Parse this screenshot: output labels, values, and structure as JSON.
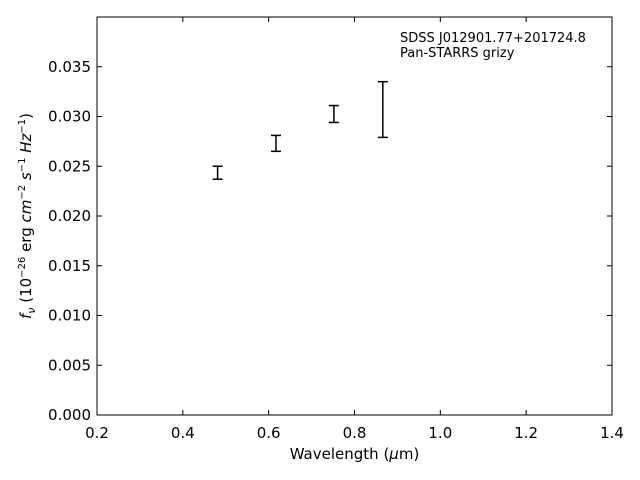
{
  "chart_data": {
    "type": "scatter",
    "title": "",
    "xlabel_text": "Wavelength (",
    "xlabel_unit_mu": "μ",
    "xlabel_unit_rest": "m)",
    "ylabel": "f_ν (10^-26 erg cm^-2 s^-1 Hz^-1)",
    "ylabel_parts": {
      "f": "f",
      "nu": "ν",
      "open": " (10",
      "exp1": "−26",
      "erg": " erg ",
      "cm": "cm",
      "exp2": "−2",
      "s": " s",
      "exp3": "−1",
      "hz": " Hz",
      "exp4": "−1",
      "close": ")"
    },
    "xlim": [
      0.2,
      1.4
    ],
    "ylim": [
      0.0,
      0.04
    ],
    "x_ticks": [
      0.2,
      0.4,
      0.6,
      0.8,
      1.0,
      1.2,
      1.4
    ],
    "x_tick_labels": [
      "0.2",
      "0.4",
      "0.6",
      "0.8",
      "1.0",
      "1.2",
      "1.4"
    ],
    "y_ticks": [
      0.0,
      0.005,
      0.01,
      0.015,
      0.02,
      0.025,
      0.03,
      0.035
    ],
    "y_tick_labels": [
      "0.000",
      "0.005",
      "0.010",
      "0.015",
      "0.020",
      "0.025",
      "0.030",
      "0.035"
    ],
    "grid": false,
    "series": [
      {
        "points": [
          {
            "x": 0.481,
            "y_low": 0.0237,
            "y_high": 0.025
          },
          {
            "x": 0.617,
            "y_low": 0.0265,
            "y_high": 0.0281
          },
          {
            "x": 0.752,
            "y_low": 0.0294,
            "y_high": 0.0311
          },
          {
            "x": 0.866,
            "y_low": 0.0279,
            "y_high": 0.0335
          }
        ]
      }
    ],
    "annotations": [
      "SDSS J012901.77+201724.8",
      "Pan-STARRS grizy"
    ],
    "annotation_placement": "top-right"
  }
}
